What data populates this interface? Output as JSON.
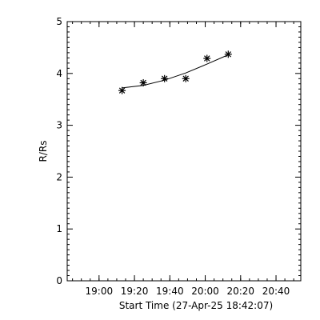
{
  "chart_data": {
    "type": "scatter",
    "title": "",
    "xlabel": "Start Time (27-Apr-25 18:42:07)",
    "ylabel": "R/Rs",
    "x_ticks": [
      "19:00",
      "19:20",
      "19:40",
      "20:00",
      "20:20",
      "20:40"
    ],
    "x_tick_minutes": [
      18,
      38,
      58,
      78,
      98,
      118
    ],
    "x_range_minutes": [
      0,
      132
    ],
    "y_ticks": [
      "0",
      "1",
      "2",
      "3",
      "4",
      "5"
    ],
    "ylim": [
      0,
      5
    ],
    "grid": false,
    "legend": "none",
    "series": [
      {
        "marker": "asterisk",
        "x_minutes": [
          31,
          43,
          55,
          67,
          79,
          91
        ],
        "y": [
          3.67,
          3.82,
          3.9,
          3.9,
          4.29,
          4.37
        ]
      }
    ],
    "fit_line": {
      "x_minutes": [
        31,
        43,
        55,
        67,
        79,
        91
      ],
      "y": [
        3.72,
        3.77,
        3.87,
        4.01,
        4.18,
        4.36
      ]
    }
  }
}
